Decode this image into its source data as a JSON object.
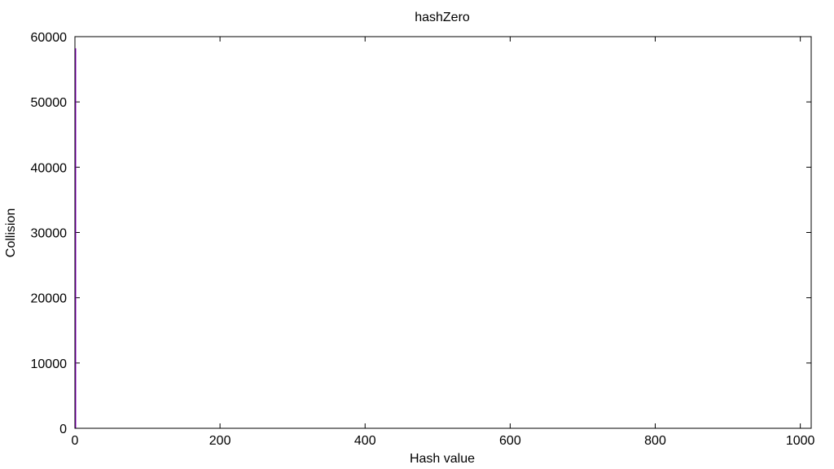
{
  "chart_data": {
    "type": "bar",
    "title": "hashZero",
    "xlabel": "Hash value",
    "ylabel": "Collision",
    "xlim": [
      0,
      1015
    ],
    "ylim": [
      0,
      60000
    ],
    "xticks": [
      0,
      200,
      400,
      600,
      800,
      1000
    ],
    "yticks": [
      0,
      10000,
      20000,
      30000,
      40000,
      50000,
      60000
    ],
    "x": [
      0
    ],
    "values": [
      58200
    ],
    "grid": false,
    "series_color": "#9400d3"
  }
}
